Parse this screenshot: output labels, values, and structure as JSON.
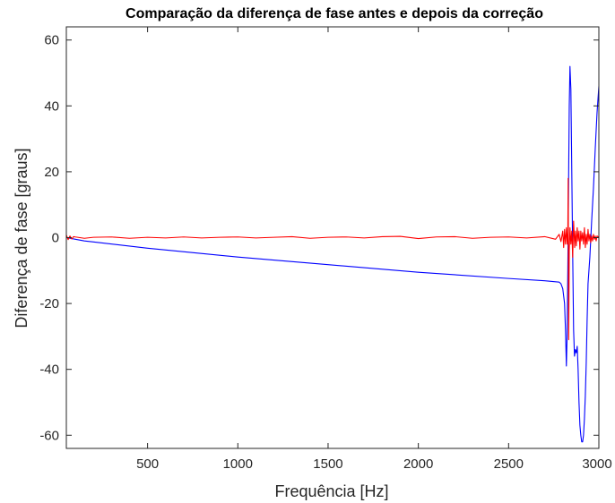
{
  "chart_data": {
    "type": "line",
    "title": "Comparação da diferença de fase antes e depois da correção",
    "xlabel": "Frequência [Hz]",
    "ylabel": "Diferença de fase [graus]",
    "xlim": [
      50,
      3000
    ],
    "ylim": [
      -64,
      64
    ],
    "xticks": [
      500,
      1000,
      1500,
      2000,
      2500,
      3000
    ],
    "yticks": [
      -60,
      -40,
      -20,
      0,
      20,
      40,
      60
    ],
    "xtick_labels": [
      "500",
      "1000",
      "1500",
      "2000",
      "2500",
      "3000"
    ],
    "ytick_labels": [
      "-60",
      "-40",
      "-20",
      "0",
      "20",
      "40",
      "60"
    ],
    "grid": false,
    "legend": "none",
    "series": [
      {
        "color": "#0000ff",
        "x": [
          50,
          100,
          150,
          200,
          500,
          1000,
          1500,
          2000,
          2500,
          2700,
          2760,
          2780,
          2790,
          2800,
          2810,
          2815,
          2820,
          2824,
          2828,
          2832,
          2836,
          2840,
          2845,
          2850,
          2855,
          2860,
          2865,
          2870,
          2875,
          2880,
          2885,
          2890,
          2895,
          2900,
          2905,
          2910,
          2915,
          2920,
          2925,
          2930,
          2935,
          2940,
          2950,
          2960,
          2970,
          2980,
          2990,
          3000
        ],
        "y": [
          0,
          -0.5,
          -1.0,
          -1.3,
          -3.2,
          -5.9,
          -8.2,
          -10.5,
          -12.4,
          -13.1,
          -13.4,
          -13.5,
          -14.0,
          -15.5,
          -20.0,
          -28.0,
          -39.0,
          -30.0,
          -10.0,
          15.0,
          40.0,
          52.0,
          45.0,
          20.0,
          -5.0,
          -28.0,
          -36.0,
          -34.0,
          -35.0,
          -33.0,
          -40.0,
          -50.0,
          -57.0,
          -60.0,
          -62.0,
          -62.0,
          -60.0,
          -55.0,
          -48.0,
          -38.0,
          -25.0,
          -14.0,
          -6.0,
          5.0,
          15.0,
          27.0,
          38.0,
          46.0
        ]
      },
      {
        "color": "#ff0000",
        "x": [
          50,
          60,
          70,
          80,
          90,
          100,
          150,
          200,
          300,
          400,
          500,
          600,
          700,
          800,
          900,
          1000,
          1100,
          1200,
          1300,
          1400,
          1500,
          1600,
          1700,
          1800,
          1900,
          2000,
          2100,
          2200,
          2300,
          2400,
          2500,
          2600,
          2700,
          2760,
          2780,
          2790,
          2800,
          2805,
          2810,
          2815,
          2820,
          2825,
          2828,
          2830,
          2833,
          2836,
          2840,
          2845,
          2850,
          2855,
          2860,
          2863,
          2866,
          2870,
          2875,
          2880,
          2885,
          2890,
          2895,
          2900,
          2905,
          2910,
          2915,
          2920,
          2925,
          2930,
          2935,
          2940,
          2945,
          2950,
          2955,
          2960,
          2965,
          2970,
          2975,
          2980,
          2985,
          2990,
          2995,
          3000
        ],
        "y": [
          0.8,
          -0.6,
          0.5,
          -0.4,
          0.3,
          0.2,
          -0.2,
          0.1,
          0.2,
          -0.2,
          0.1,
          -0.1,
          0.2,
          -0.1,
          0.1,
          0.2,
          -0.1,
          0.1,
          0.3,
          -0.2,
          0.1,
          0.2,
          -0.1,
          0.3,
          0.4,
          -0.3,
          0.2,
          0.3,
          -0.2,
          0.1,
          0.2,
          -0.1,
          0.3,
          -0.5,
          1.0,
          -1.2,
          2.0,
          -3.0,
          2.5,
          -2.0,
          3.0,
          -2.0,
          1.5,
          18.0,
          -31.0,
          -4.0,
          3.0,
          -2.0,
          2.0,
          -6.0,
          5.0,
          1.0,
          -3.0,
          2.0,
          -2.5,
          3.0,
          -1.0,
          2.0,
          -3.5,
          2.0,
          -1.0,
          1.5,
          -2.0,
          3.0,
          -3.0,
          1.0,
          -2.0,
          2.5,
          -1.0,
          1.0,
          -1.5,
          0.5,
          -1.0,
          1.0,
          -0.5,
          0.5,
          -1.0,
          0.5,
          0.3,
          0.2
        ]
      }
    ]
  }
}
